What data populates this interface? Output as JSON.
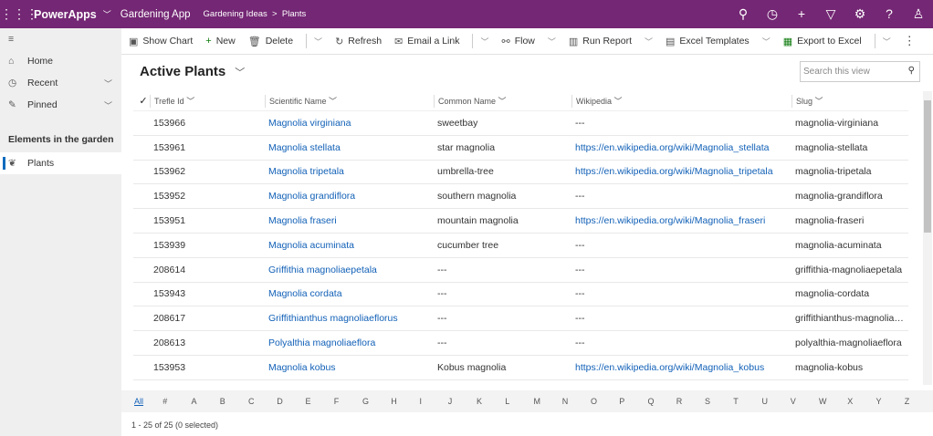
{
  "header": {
    "app": "PowerApps",
    "app_name": "Gardening App",
    "breadcrumb": [
      "Gardening Ideas",
      "Plants"
    ],
    "color": "#742774",
    "icons": [
      "search-icon",
      "task-icon",
      "plus-icon",
      "filter-icon",
      "gear-icon",
      "help-icon",
      "user-icon"
    ]
  },
  "toolbar": {
    "show_chart": "Show Chart",
    "new": "New",
    "delete": "Delete",
    "refresh": "Refresh",
    "email": "Email a Link",
    "flow": "Flow",
    "run_report": "Run Report",
    "excel_templates": "Excel Templates",
    "export": "Export to Excel"
  },
  "sidebar": {
    "home": "Home",
    "recent": "Recent",
    "pinned": "Pinned",
    "group": "Elements in the garden",
    "plants": "Plants"
  },
  "view": {
    "title": "Active Plants",
    "search_placeholder": "Search this view"
  },
  "grid": {
    "columns": [
      "Trefle Id",
      "Scientific Name",
      "Common Name",
      "Wikipedia",
      "Slug"
    ],
    "rows": [
      [
        "153966",
        "Magnolia virginiana",
        "sweetbay",
        "---",
        "magnolia-virginiana"
      ],
      [
        "153961",
        "Magnolia stellata",
        "star magnolia",
        "https://en.wikipedia.org/wiki/Magnolia_stellata",
        "magnolia-stellata"
      ],
      [
        "153962",
        "Magnolia tripetala",
        "umbrella-tree",
        "https://en.wikipedia.org/wiki/Magnolia_tripetala",
        "magnolia-tripetala"
      ],
      [
        "153952",
        "Magnolia grandiflora",
        "southern magnolia",
        "---",
        "magnolia-grandiflora"
      ],
      [
        "153951",
        "Magnolia fraseri",
        "mountain magnolia",
        "https://en.wikipedia.org/wiki/Magnolia_fraseri",
        "magnolia-fraseri"
      ],
      [
        "153939",
        "Magnolia acuminata",
        "cucumber tree",
        "---",
        "magnolia-acuminata"
      ],
      [
        "208614",
        "Griffithia magnoliaepetala",
        "---",
        "---",
        "griffithia-magnoliaepetala"
      ],
      [
        "153943",
        "Magnolia cordata",
        "---",
        "---",
        "magnolia-cordata"
      ],
      [
        "208617",
        "Griffithianthus magnoliaeflorus",
        "---",
        "---",
        "griffithianthus-magnoliaeflorus"
      ],
      [
        "208613",
        "Polyalthia magnoliaeflora",
        "---",
        "---",
        "polyalthia-magnoliaeflora"
      ],
      [
        "153953",
        "Magnolia kobus",
        "Kobus magnolia",
        "https://en.wikipedia.org/wiki/Magnolia_kobus",
        "magnolia-kobus"
      ]
    ]
  },
  "alphabet": [
    "All",
    "#",
    "A",
    "B",
    "C",
    "D",
    "E",
    "F",
    "G",
    "H",
    "I",
    "J",
    "K",
    "L",
    "M",
    "N",
    "O",
    "P",
    "Q",
    "R",
    "S",
    "T",
    "U",
    "V",
    "W",
    "X",
    "Y",
    "Z"
  ],
  "footer": "1 - 25 of 25 (0 selected)"
}
